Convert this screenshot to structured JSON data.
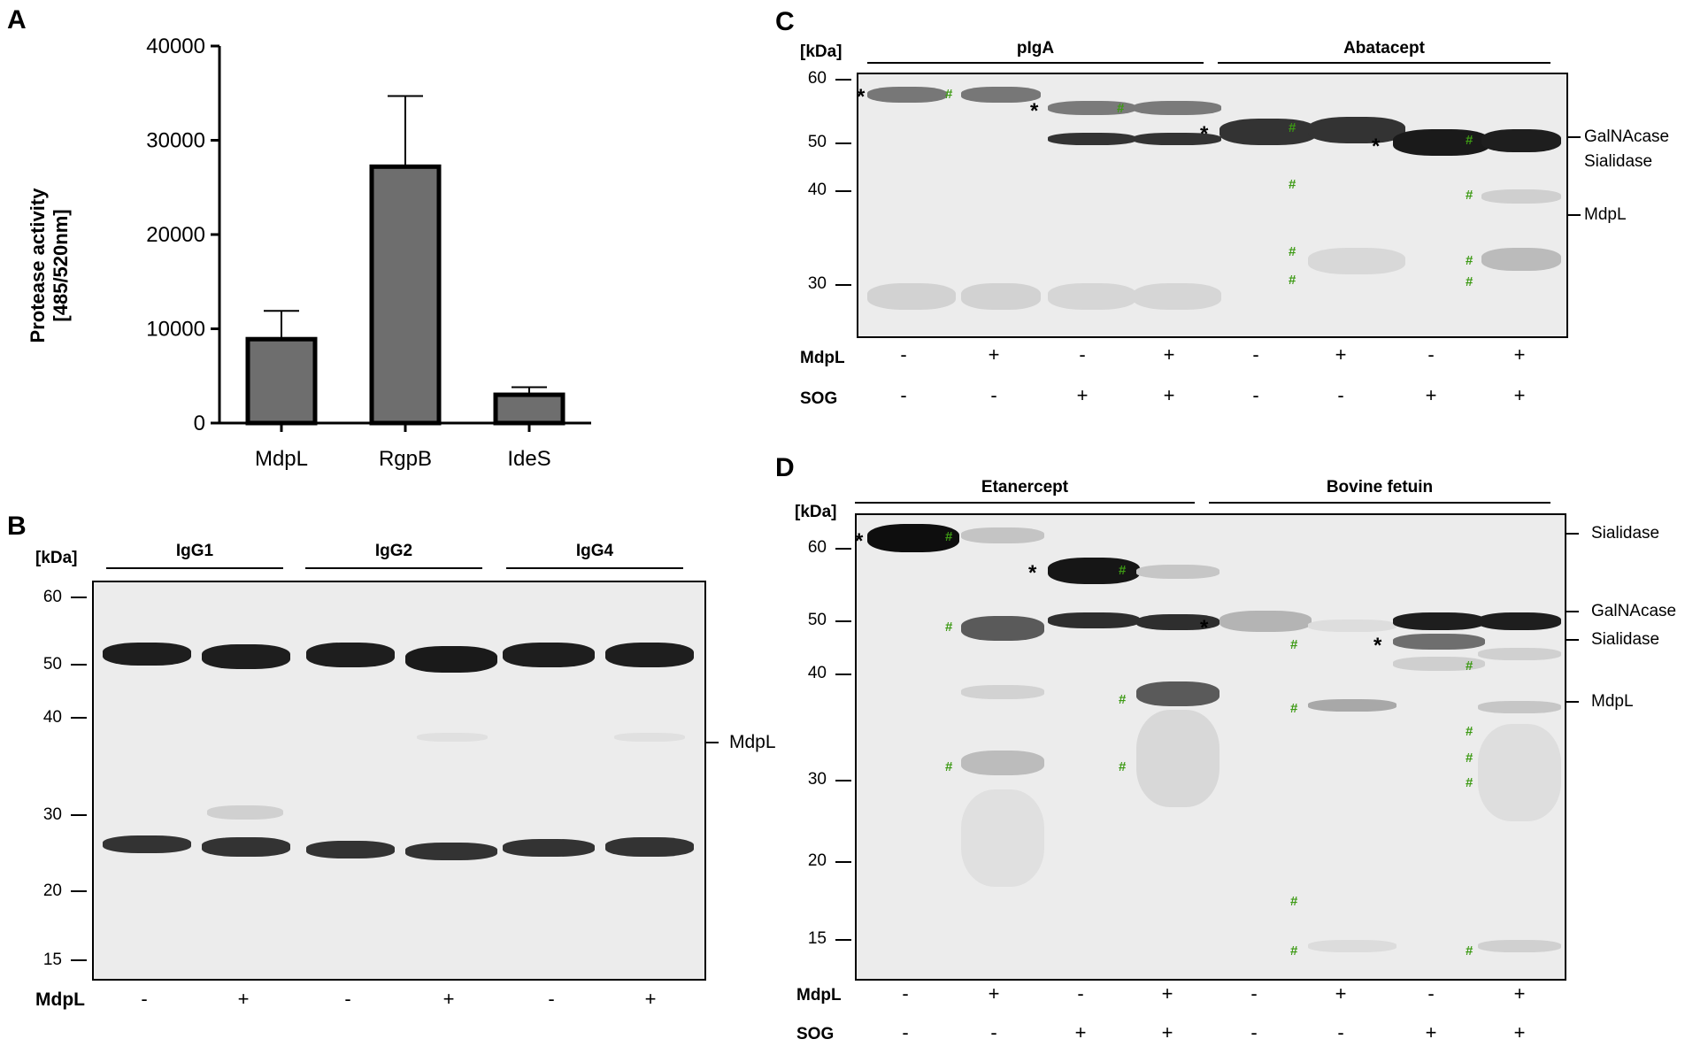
{
  "panels": {
    "A": "A",
    "B": "B",
    "C": "C",
    "D": "D"
  },
  "chart_data": {
    "type": "bar",
    "categories": [
      "MdpL",
      "RgpB",
      "IdeS"
    ],
    "values": [
      8900,
      27200,
      3000
    ],
    "errors": [
      3000,
      7500,
      800
    ],
    "ylabel_line1": "Protease activity",
    "ylabel_line2": "[485/520nm]",
    "yticks": [
      "0",
      "10000",
      "20000",
      "30000",
      "40000"
    ],
    "ylim": [
      0,
      40000
    ],
    "bar_color": "#6e6e6e"
  },
  "gelB": {
    "kda": "[kDa]",
    "groups": [
      "IgG1",
      "IgG2",
      "IgG4"
    ],
    "markers": [
      "60",
      "50",
      "40",
      "30",
      "20",
      "15"
    ],
    "right_labels": [
      "MdpL"
    ],
    "row_label": "MdpL",
    "row_signs": [
      "-",
      "+",
      "-",
      "+",
      "-",
      "+"
    ]
  },
  "gelC": {
    "kda": "[kDa]",
    "groups": [
      "pIgA",
      "Abatacept"
    ],
    "markers": [
      "60",
      "50",
      "40",
      "30"
    ],
    "right_labels": [
      "GalNAcase",
      "Sialidase",
      "MdpL"
    ],
    "rows": [
      {
        "label": "MdpL",
        "signs": [
          "-",
          "+",
          "-",
          "+",
          "-",
          "+",
          "-",
          "+"
        ]
      },
      {
        "label": "SOG",
        "signs": [
          "-",
          "-",
          "+",
          "+",
          "-",
          "-",
          "+",
          "+"
        ]
      }
    ],
    "star": "*",
    "hash": "#"
  },
  "gelD": {
    "kda": "[kDa]",
    "groups": [
      "Etanercept",
      "Bovine fetuin"
    ],
    "markers": [
      "60",
      "50",
      "40",
      "30",
      "20",
      "15"
    ],
    "right_labels": [
      "Sialidase",
      "GalNAcase",
      "Sialidase",
      "MdpL"
    ],
    "rows": [
      {
        "label": "MdpL",
        "signs": [
          "-",
          "+",
          "-",
          "+",
          "-",
          "+",
          "-",
          "+"
        ]
      },
      {
        "label": "SOG",
        "signs": [
          "-",
          "-",
          "+",
          "+",
          "-",
          "-",
          "+",
          "+"
        ]
      }
    ],
    "star": "*",
    "hash": "#"
  }
}
